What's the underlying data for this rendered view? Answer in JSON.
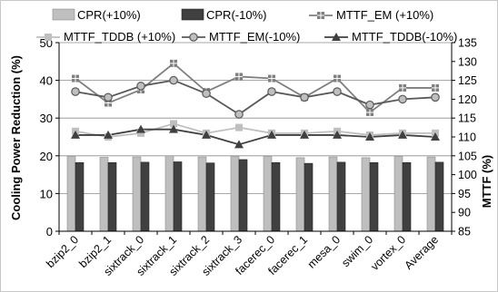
{
  "chart_data": {
    "type": "bar",
    "categories": [
      "bzip2_0",
      "bzip2_1",
      "sixtrack_0",
      "sixtrack_1",
      "sixtrack_2",
      "sixtrack_3",
      "facerec_0",
      "facerec_1",
      "mesa_0",
      "swim_0",
      "vortex_0",
      "Average"
    ],
    "xlabel": "",
    "ylabel": "Cooling Power Reduction (%)",
    "ylabel_right": "MTTF (%)",
    "ylim": [
      0,
      50
    ],
    "ylim_right": [
      85,
      135
    ],
    "yticks": [
      "0",
      "10",
      "20",
      "30",
      "40",
      "50"
    ],
    "yticks_right": [
      "85",
      "90",
      "95",
      "100",
      "105",
      "110",
      "115",
      "120",
      "125",
      "130",
      "135"
    ],
    "legend_position": "top",
    "series": [
      {
        "name": "CPR(+10%)",
        "kind": "bar",
        "axis": "left",
        "color": "#bfbfbf",
        "values": [
          19.8,
          19.6,
          19.7,
          20.0,
          19.7,
          19.9,
          19.8,
          19.5,
          19.7,
          19.5,
          19.8,
          19.7
        ]
      },
      {
        "name": "CPR(-10%)",
        "kind": "bar",
        "axis": "left",
        "color": "#404040",
        "values": [
          18.2,
          18.2,
          18.3,
          18.4,
          18.1,
          19.0,
          18.2,
          18.0,
          18.3,
          18.2,
          18.2,
          18.3
        ]
      },
      {
        "name": "MTTF_EM (+10%)",
        "kind": "line",
        "axis": "right",
        "marker": "square-plus",
        "color": "#7f7f7f",
        "values": [
          125.5,
          119.0,
          122.5,
          129.5,
          122.0,
          126.0,
          125.5,
          120.5,
          125.5,
          116.5,
          123.0,
          123.0
        ]
      },
      {
        "name": "MTTF_TDDB (+10%)",
        "kind": "line",
        "axis": "right",
        "marker": "square",
        "color": "#bfbfbf",
        "values": [
          111.5,
          110.0,
          111.0,
          113.5,
          111.0,
          112.5,
          111.0,
          111.0,
          111.5,
          110.5,
          111.0,
          111.0
        ]
      },
      {
        "name": "MTTF_EM(-10%)",
        "kind": "line",
        "axis": "right",
        "marker": "circle",
        "color": "#595959",
        "values": [
          122.0,
          120.5,
          123.5,
          125.0,
          121.5,
          116.0,
          122.0,
          120.5,
          122.0,
          118.5,
          120.0,
          120.5
        ]
      },
      {
        "name": "MTTF_TDDB(-10%)",
        "kind": "line",
        "axis": "right",
        "marker": "triangle",
        "color": "#404040",
        "values": [
          110.5,
          110.5,
          112.0,
          112.0,
          110.5,
          108.0,
          110.5,
          110.5,
          110.5,
          110.0,
          110.5,
          110.0
        ]
      }
    ]
  }
}
